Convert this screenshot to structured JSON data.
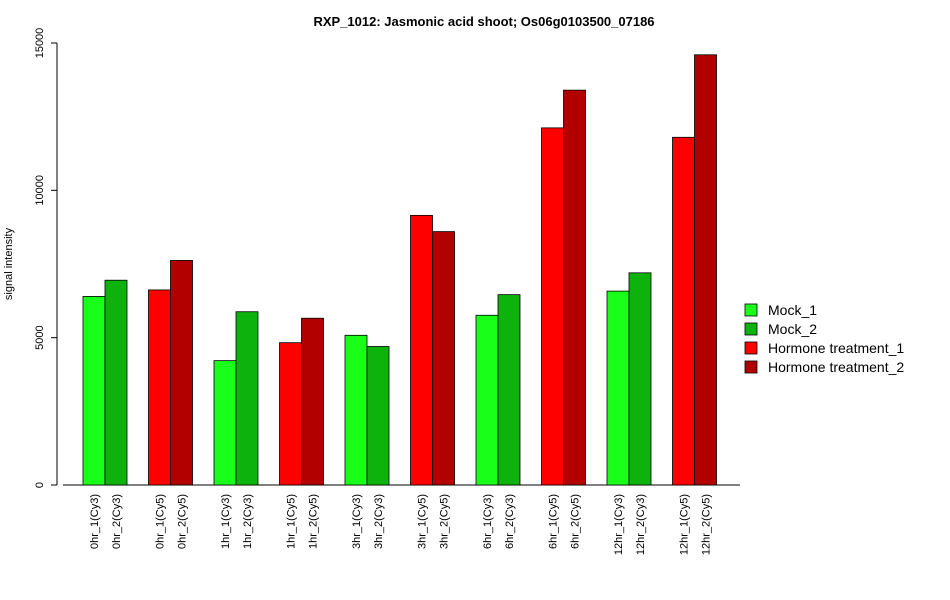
{
  "chart_data": {
    "type": "bar",
    "title": "RXP_1012: Jasmonic acid shoot; Os06g0103500_07186",
    "ylabel": "signal intensity",
    "xlabel": "",
    "ylim": [
      0,
      15000
    ],
    "yticks": [
      0,
      5000,
      10000,
      15000
    ],
    "grid": false,
    "legend_position": "right",
    "legend": [
      {
        "label": "Mock_1",
        "color": "#19FF19"
      },
      {
        "label": "Mock_2",
        "color": "#0DB20D"
      },
      {
        "label": "Hormone treatment_1",
        "color": "#FF0000"
      },
      {
        "label": "Hormone treatment_2",
        "color": "#B20000"
      }
    ],
    "groups": [
      {
        "bars": [
          {
            "label": "0hr_1(Cy3)",
            "value": 6400,
            "color": "#19FF19"
          },
          {
            "label": "0hr_2(Cy3)",
            "value": 6950,
            "color": "#0DB20D"
          }
        ]
      },
      {
        "bars": [
          {
            "label": "0hr_1(Cy5)",
            "value": 6620,
            "color": "#FF0000"
          },
          {
            "label": "0hr_2(Cy5)",
            "value": 7620,
            "color": "#B20000"
          }
        ]
      },
      {
        "bars": [
          {
            "label": "1hr_1(Cy3)",
            "value": 4220,
            "color": "#19FF19"
          },
          {
            "label": "1hr_2(Cy3)",
            "value": 5880,
            "color": "#0DB20D"
          }
        ]
      },
      {
        "bars": [
          {
            "label": "1hr_1(Cy5)",
            "value": 4830,
            "color": "#FF0000"
          },
          {
            "label": "1hr_2(Cy5)",
            "value": 5660,
            "color": "#B20000"
          }
        ]
      },
      {
        "bars": [
          {
            "label": "3hr_1(Cy3)",
            "value": 5080,
            "color": "#19FF19"
          },
          {
            "label": "3hr_2(Cy3)",
            "value": 4700,
            "color": "#0DB20D"
          }
        ]
      },
      {
        "bars": [
          {
            "label": "3hr_1(Cy5)",
            "value": 9150,
            "color": "#FF0000"
          },
          {
            "label": "3hr_2(Cy5)",
            "value": 8600,
            "color": "#B20000"
          }
        ]
      },
      {
        "bars": [
          {
            "label": "6hr_1(Cy3)",
            "value": 5760,
            "color": "#19FF19"
          },
          {
            "label": "6hr_2(Cy3)",
            "value": 6460,
            "color": "#0DB20D"
          }
        ]
      },
      {
        "bars": [
          {
            "label": "6hr_1(Cy5)",
            "value": 12120,
            "color": "#FF0000"
          },
          {
            "label": "6hr_2(Cy5)",
            "value": 13400,
            "color": "#B20000"
          }
        ]
      },
      {
        "bars": [
          {
            "label": "12hr_1(Cy3)",
            "value": 6580,
            "color": "#19FF19"
          },
          {
            "label": "12hr_2(Cy3)",
            "value": 7200,
            "color": "#0DB20D"
          }
        ]
      },
      {
        "bars": [
          {
            "label": "12hr_1(Cy5)",
            "value": 11800,
            "color": "#FF0000"
          },
          {
            "label": "12hr_2(Cy5)",
            "value": 14600,
            "color": "#B20000"
          }
        ]
      }
    ]
  }
}
